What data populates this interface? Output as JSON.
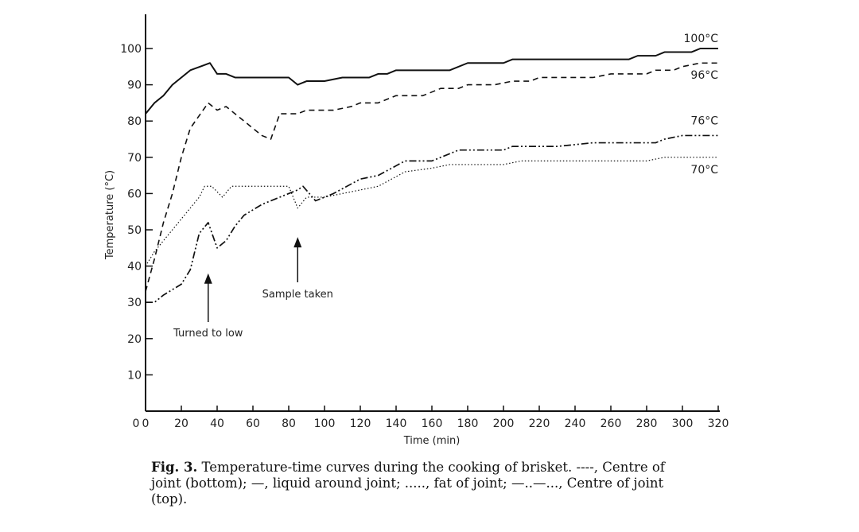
{
  "chart_data": {
    "type": "line",
    "title": "",
    "xlabel": "Time (min)",
    "ylabel": "Temperature (°C)",
    "xlim": [
      0,
      320
    ],
    "ylim": [
      0,
      100
    ],
    "xticks": [
      0,
      20,
      40,
      60,
      80,
      100,
      120,
      140,
      160,
      180,
      200,
      220,
      240,
      260,
      280,
      300,
      320
    ],
    "yticks": [
      10,
      20,
      30,
      40,
      50,
      60,
      70,
      80,
      90,
      100
    ],
    "grid": false,
    "series": [
      {
        "name": "liquid around joint",
        "style": "solid",
        "end_label": "100°C",
        "x": [
          0,
          5,
          10,
          15,
          25,
          36,
          40,
          45,
          50,
          60,
          70,
          80,
          85,
          90,
          100,
          110,
          125,
          130,
          135,
          140,
          150,
          170,
          180,
          200,
          205,
          270,
          275,
          285,
          290,
          305,
          310,
          320
        ],
        "y": [
          82,
          85,
          87,
          90,
          94,
          96,
          93,
          93,
          92,
          92,
          92,
          92,
          90,
          91,
          91,
          92,
          92,
          93,
          93,
          94,
          94,
          94,
          96,
          96,
          97,
          97,
          98,
          98,
          99,
          99,
          100,
          100
        ]
      },
      {
        "name": "Centre of joint (bottom)",
        "style": "dashed",
        "end_label": "96°C",
        "x": [
          0,
          5,
          10,
          15,
          20,
          25,
          35,
          40,
          45,
          55,
          65,
          70,
          75,
          85,
          90,
          105,
          115,
          120,
          130,
          140,
          155,
          165,
          175,
          180,
          195,
          205,
          215,
          220,
          250,
          260,
          280,
          285,
          295,
          300,
          310,
          320
        ],
        "y": [
          33,
          42,
          52,
          60,
          70,
          78,
          85,
          83,
          84,
          80,
          76,
          75,
          82,
          82,
          83,
          83,
          84,
          85,
          85,
          87,
          87,
          89,
          89,
          90,
          90,
          91,
          91,
          92,
          92,
          93,
          93,
          94,
          94,
          95,
          96,
          96
        ]
      },
      {
        "name": "Centre of joint (top)",
        "style": "dashdot",
        "end_label": "76°C",
        "x": [
          0,
          5,
          10,
          20,
          25,
          30,
          35,
          40,
          45,
          50,
          55,
          65,
          75,
          85,
          88,
          95,
          105,
          120,
          130,
          145,
          160,
          175,
          200,
          205,
          230,
          250,
          285,
          290,
          300,
          320
        ],
        "y": [
          30,
          30,
          32,
          35,
          39,
          49,
          52,
          45,
          47,
          51,
          54,
          57,
          59,
          61,
          62,
          58,
          60,
          64,
          65,
          69,
          69,
          72,
          72,
          73,
          73,
          74,
          74,
          75,
          76,
          76
        ]
      },
      {
        "name": "fat of joint",
        "style": "dotted",
        "end_label": "70°C",
        "x": [
          0,
          5,
          10,
          20,
          30,
          33,
          37,
          43,
          48,
          80,
          85,
          90,
          100,
          120,
          130,
          145,
          160,
          170,
          180,
          200,
          210,
          280,
          290,
          320
        ],
        "y": [
          40,
          44,
          47,
          53,
          59,
          62,
          62,
          59,
          62,
          62,
          56,
          59,
          59,
          61,
          62,
          66,
          67,
          68,
          68,
          68,
          69,
          69,
          70,
          70
        ]
      }
    ],
    "annotations": [
      {
        "text": "Turned to low",
        "x": 35,
        "arrow_tip_y": 38
      },
      {
        "text": "Sample taken",
        "x": 85,
        "arrow_tip_y": 48
      }
    ]
  },
  "caption": {
    "fig": "Fig. 3.",
    "text": "Temperature-time curves during the cooking of brisket. ----, Centre of joint (bottom); —, liquid around joint; ....., fat of joint; —..—..., Centre of joint (top)."
  }
}
